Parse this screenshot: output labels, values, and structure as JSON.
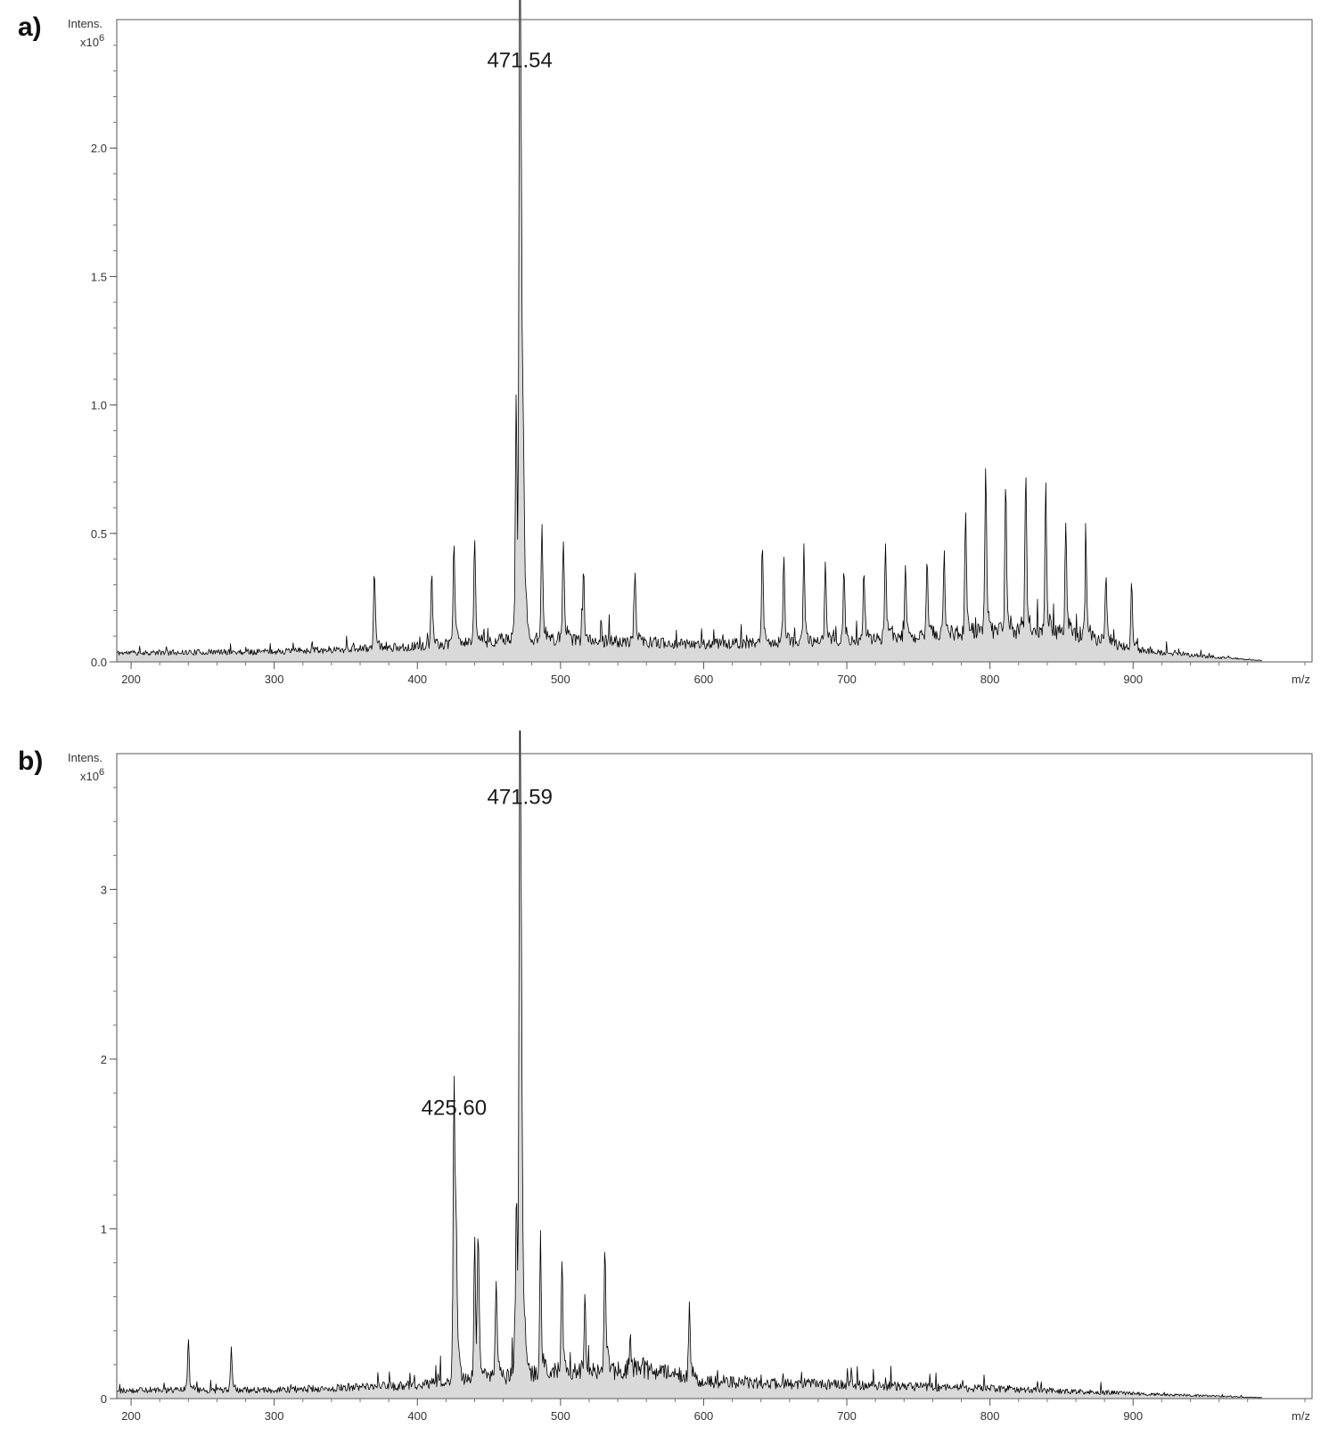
{
  "chart_data": [
    {
      "type": "line",
      "panel_label": "a)",
      "ylabel_line1": "Intens.",
      "ylabel_line2_base": "x10",
      "ylabel_line2_exp": "6",
      "xlabel": "m/z",
      "xlim": [
        190,
        1025
      ],
      "ylim": [
        0,
        2.5
      ],
      "x_ticks": [
        200,
        300,
        400,
        500,
        600,
        700,
        800,
        900
      ],
      "x_tick_labels": [
        "200",
        "300",
        "400",
        "500",
        "600",
        "700",
        "800",
        "900"
      ],
      "y_ticks": [
        0,
        0.5,
        1.0,
        1.5,
        2.0
      ],
      "y_tick_labels": [
        "0.0",
        "0.5",
        "1.0",
        "1.5",
        "2.0"
      ],
      "y_minor_step": 0.1,
      "grid": false,
      "baseline": {
        "x": [
          190,
          300,
          400,
          470,
          600,
          700,
          800,
          860,
          900,
          930,
          990
        ],
        "y": [
          0.035,
          0.04,
          0.06,
          0.09,
          0.07,
          0.08,
          0.12,
          0.11,
          0.05,
          0.03,
          0.005
        ]
      },
      "noise_amplitude": 0.04,
      "x_end": 990,
      "peaks": [
        {
          "x": 471.54,
          "y": 2.28
        },
        {
          "x": 469.0,
          "y": 0.86
        },
        {
          "x": 472.6,
          "y": 1.07
        },
        {
          "x": 474.0,
          "y": 0.45
        },
        {
          "x": 425.6,
          "y": 0.37
        },
        {
          "x": 440.0,
          "y": 0.37
        },
        {
          "x": 410.0,
          "y": 0.26
        },
        {
          "x": 370.0,
          "y": 0.27
        },
        {
          "x": 487.0,
          "y": 0.43
        },
        {
          "x": 502.0,
          "y": 0.37
        },
        {
          "x": 516.0,
          "y": 0.25
        },
        {
          "x": 552.0,
          "y": 0.26
        },
        {
          "x": 641.0,
          "y": 0.35
        },
        {
          "x": 656.0,
          "y": 0.29
        },
        {
          "x": 670.0,
          "y": 0.33
        },
        {
          "x": 685.0,
          "y": 0.28
        },
        {
          "x": 698.0,
          "y": 0.27
        },
        {
          "x": 712.0,
          "y": 0.25
        },
        {
          "x": 727.0,
          "y": 0.33
        },
        {
          "x": 741.0,
          "y": 0.25
        },
        {
          "x": 756.0,
          "y": 0.27
        },
        {
          "x": 768.0,
          "y": 0.31
        },
        {
          "x": 783.0,
          "y": 0.43
        },
        {
          "x": 797.0,
          "y": 0.61
        },
        {
          "x": 811.0,
          "y": 0.56
        },
        {
          "x": 825.0,
          "y": 0.6
        },
        {
          "x": 839.0,
          "y": 0.53
        },
        {
          "x": 853.0,
          "y": 0.4
        },
        {
          "x": 867.0,
          "y": 0.31
        },
        {
          "x": 881.0,
          "y": 0.24
        },
        {
          "x": 899.0,
          "y": 0.23
        }
      ],
      "annotations": [
        {
          "x": 471.54,
          "y": 2.28,
          "text": "471.54"
        }
      ]
    },
    {
      "type": "line",
      "panel_label": "b)",
      "ylabel_line1": "Intens.",
      "ylabel_line2_base": "x10",
      "ylabel_line2_exp": "6",
      "xlabel": "m/z",
      "xlim": [
        190,
        1025
      ],
      "ylim": [
        0,
        3.8
      ],
      "x_ticks": [
        200,
        300,
        400,
        500,
        600,
        700,
        800,
        900
      ],
      "x_tick_labels": [
        "200",
        "300",
        "400",
        "500",
        "600",
        "700",
        "800",
        "900"
      ],
      "y_ticks": [
        0,
        1,
        2,
        3
      ],
      "y_tick_labels": [
        "0",
        "1",
        "2",
        "3"
      ],
      "y_minor_step": 0.2,
      "grid": false,
      "baseline": {
        "x": [
          190,
          300,
          400,
          470,
          560,
          600,
          700,
          800,
          900,
          990
        ],
        "y": [
          0.05,
          0.05,
          0.08,
          0.14,
          0.18,
          0.1,
          0.08,
          0.06,
          0.03,
          0.005
        ]
      },
      "noise_amplitude": 0.05,
      "x_end": 990,
      "peaks": [
        {
          "x": 471.59,
          "y": 3.45
        },
        {
          "x": 469.2,
          "y": 0.97
        },
        {
          "x": 472.7,
          "y": 1.47
        },
        {
          "x": 425.6,
          "y": 1.62
        },
        {
          "x": 427.0,
          "y": 0.74
        },
        {
          "x": 440.0,
          "y": 0.74
        },
        {
          "x": 442.5,
          "y": 0.74
        },
        {
          "x": 455.0,
          "y": 0.53
        },
        {
          "x": 486.0,
          "y": 0.69
        },
        {
          "x": 501.0,
          "y": 0.62
        },
        {
          "x": 517.0,
          "y": 0.4
        },
        {
          "x": 531.0,
          "y": 0.73
        },
        {
          "x": 590.0,
          "y": 0.38
        },
        {
          "x": 240.0,
          "y": 0.27
        },
        {
          "x": 270.0,
          "y": 0.2
        }
      ],
      "annotations": [
        {
          "x": 471.59,
          "y": 3.45,
          "text": "471.59"
        },
        {
          "x": 425.6,
          "y": 1.62,
          "text": "425.60"
        }
      ]
    }
  ]
}
